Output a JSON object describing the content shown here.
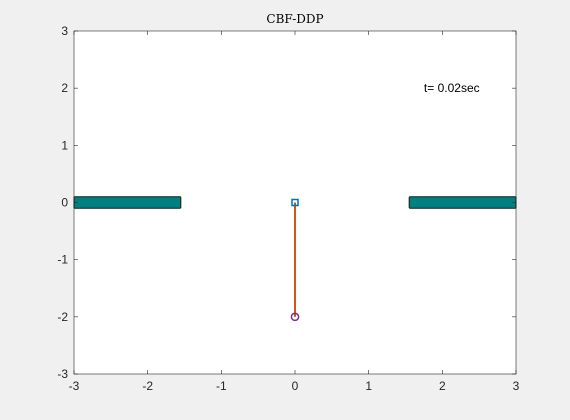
{
  "chart_data": {
    "type": "scatter",
    "title": "CBF-DDP",
    "xlabel": "",
    "ylabel": "",
    "xlim": [
      -3,
      3
    ],
    "ylim": [
      -3,
      3
    ],
    "xticks": [
      -3,
      -2,
      -1,
      0,
      1,
      2,
      3
    ],
    "yticks": [
      -3,
      -2,
      -1,
      0,
      1,
      2,
      3
    ],
    "grid": false,
    "annotation": {
      "text": "t= 0.02sec",
      "x": 1.75,
      "y": 2
    },
    "obstacles": [
      {
        "x0": -3,
        "x1": -1.55,
        "y0": -0.1,
        "y1": 0.1,
        "color": "#008080"
      },
      {
        "x0": 1.55,
        "x1": 3,
        "y0": -0.1,
        "y1": 0.1,
        "color": "#008080"
      }
    ],
    "pendulum": {
      "pivot": {
        "x": 0,
        "y": 0,
        "marker": "square",
        "color": "#0072BD"
      },
      "bob": {
        "x": 0,
        "y": -2,
        "marker": "circle",
        "color": "#7E2F8E"
      },
      "rod_color": "#D95319"
    }
  }
}
